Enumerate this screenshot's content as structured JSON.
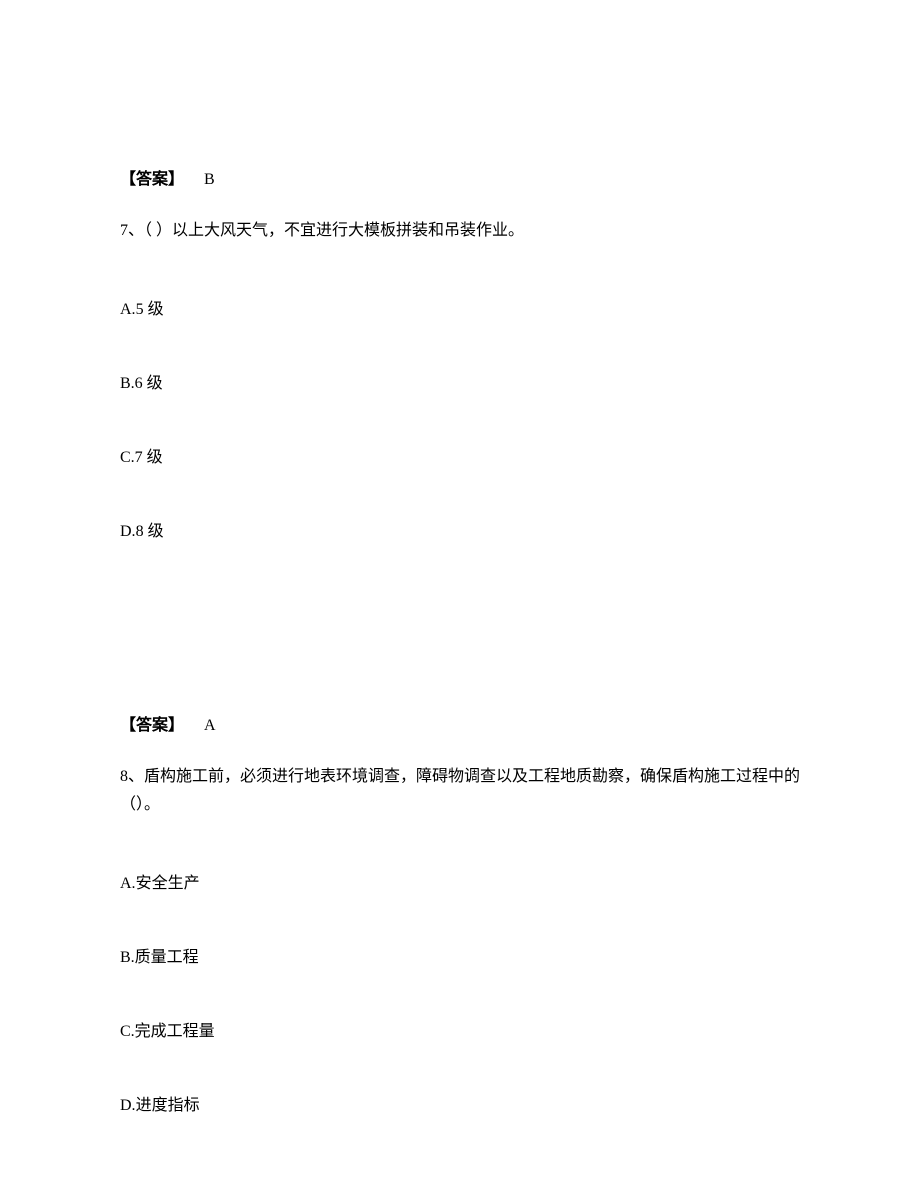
{
  "block1": {
    "answer_label": "【答案】",
    "answer_value": "B",
    "question_number": "7、",
    "question_text": "（  ）以上大风天气，不宜进行大模板拼装和吊装作业。",
    "options": {
      "a": {
        "letter": "A.",
        "text": "5 级"
      },
      "b": {
        "letter": "B.",
        "text": "6 级"
      },
      "c": {
        "letter": "C.",
        "text": "7 级"
      },
      "d": {
        "letter": "D.",
        "text": "8 级"
      }
    }
  },
  "block2": {
    "answer_label": "【答案】",
    "answer_value": "A",
    "question_number": "8、",
    "question_text": "盾构施工前，必须进行地表环境调查，障碍物调查以及工程地质勘察，确保盾构施工过程中的（）。",
    "options": {
      "a": {
        "letter": "A.",
        "text": "安全生产"
      },
      "b": {
        "letter": "B.",
        "text": "质量工程"
      },
      "c": {
        "letter": "C.",
        "text": "完成工程量"
      },
      "d": {
        "letter": "D.",
        "text": "进度指标"
      }
    }
  }
}
